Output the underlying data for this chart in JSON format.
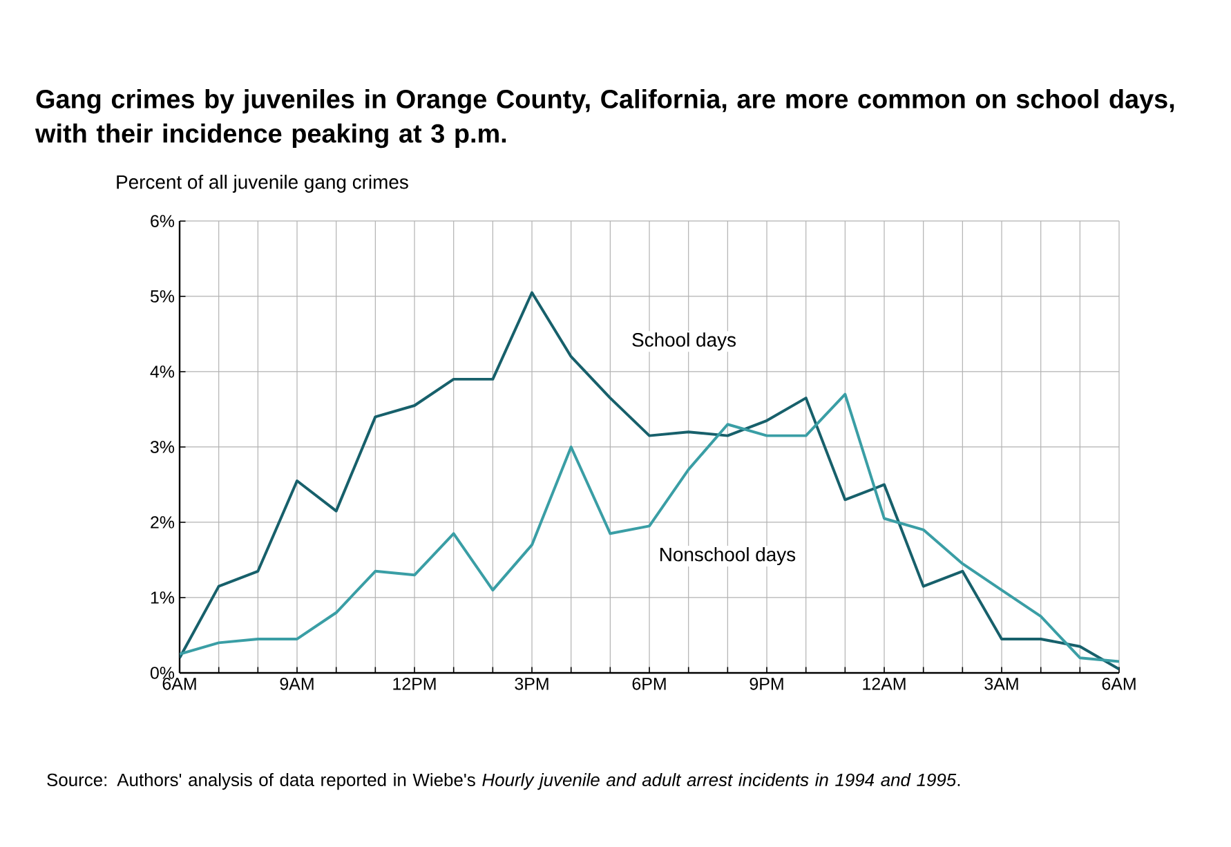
{
  "chart_data": {
    "type": "line",
    "title": "Gang crimes by juveniles in Orange County, California, are more common on school days, with their incidence peaking at 3 p.m.",
    "ylabel": "Percent of all juvenile gang crimes",
    "categories": [
      "6AM",
      null,
      null,
      "9AM",
      null,
      null,
      "12PM",
      null,
      null,
      "3PM",
      null,
      null,
      "6PM",
      null,
      null,
      "9PM",
      null,
      null,
      "12AM",
      null,
      null,
      "3AM",
      null,
      null,
      "6AM"
    ],
    "series": [
      {
        "name": "School days",
        "color": "#17606b",
        "values": [
          0.2,
          1.15,
          1.35,
          2.55,
          2.15,
          3.4,
          3.55,
          3.9,
          3.9,
          5.05,
          4.2,
          3.65,
          3.15,
          3.2,
          3.15,
          3.35,
          3.65,
          2.3,
          2.5,
          1.15,
          1.35,
          0.45,
          0.45,
          0.35,
          0.05
        ]
      },
      {
        "name": "Nonschool days",
        "color": "#3a9ea5",
        "values": [
          0.25,
          0.4,
          0.45,
          0.45,
          0.8,
          1.35,
          1.3,
          1.85,
          1.1,
          1.7,
          3.0,
          1.85,
          1.95,
          2.7,
          3.3,
          3.15,
          3.15,
          3.7,
          2.05,
          1.9,
          1.45,
          1.1,
          0.75,
          0.2,
          0.15
        ]
      }
    ],
    "ylim": [
      0,
      6
    ],
    "yticks": [
      {
        "value": 0,
        "label": "0%"
      },
      {
        "value": 1,
        "label": "1%"
      },
      {
        "value": 2,
        "label": "2%"
      },
      {
        "value": 3,
        "label": "3%"
      },
      {
        "value": 4,
        "label": "4%"
      },
      {
        "value": 5,
        "label": "5%"
      },
      {
        "value": 6,
        "label": "6%"
      }
    ],
    "grid": true,
    "legend": false,
    "marker": "none",
    "line_style": "solid",
    "annotations": [
      "Source: Authors' analysis of data reported in Wiebe's *Hourly juvenile and adult arrest incidents in 1994 and 1995*."
    ]
  }
}
